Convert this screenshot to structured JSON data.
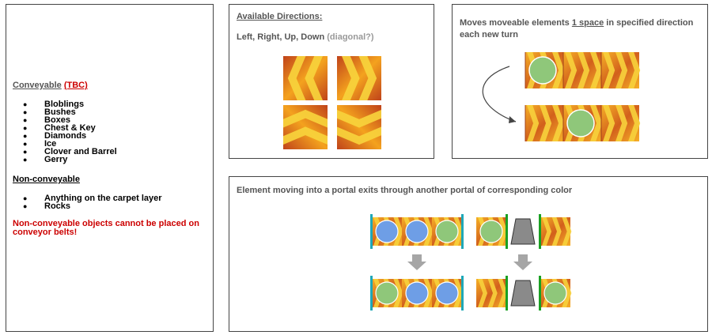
{
  "left_panel": {
    "conveyable_label": "Conveyable",
    "tbc_label": "(TBC)",
    "conveyable_items": [
      "Bloblings",
      "Bushes",
      "Boxes",
      "Chest & Key",
      "Diamonds",
      "Ice",
      "Clover and Barrel",
      "Gerry"
    ],
    "non_conveyable_label": "Non-conveyable",
    "non_conveyable_items": [
      "Anything on the carpet layer",
      "Rocks"
    ],
    "warning": "Non-conveyable objects cannot be placed on conveyor belts!"
  },
  "directions_panel": {
    "title": "Available Directions:",
    "directions": "Left, Right, Up, Down",
    "diagonal_note": "(diagonal?)",
    "tiles": [
      "left",
      "right",
      "up",
      "down"
    ]
  },
  "moves_panel": {
    "text_before": "Moves moveable elements",
    "text_highlight": "1 space",
    "text_after": " in specified direction each new turn"
  },
  "portal_panel": {
    "description": "Element moving into a portal exits through another portal of corresponding color"
  },
  "colors": {
    "belt_dark": "#c0431a",
    "belt_light": "#f4a21e",
    "chevron": "#f7d23c",
    "blob_green": "#8fc77a",
    "blob_blue": "#6e9ee6",
    "portal_cyan": "#1fa8b8",
    "portal_green": "#1aa023",
    "arrow_grey": "#a6a6a6",
    "warning_red": "#cc0000"
  }
}
